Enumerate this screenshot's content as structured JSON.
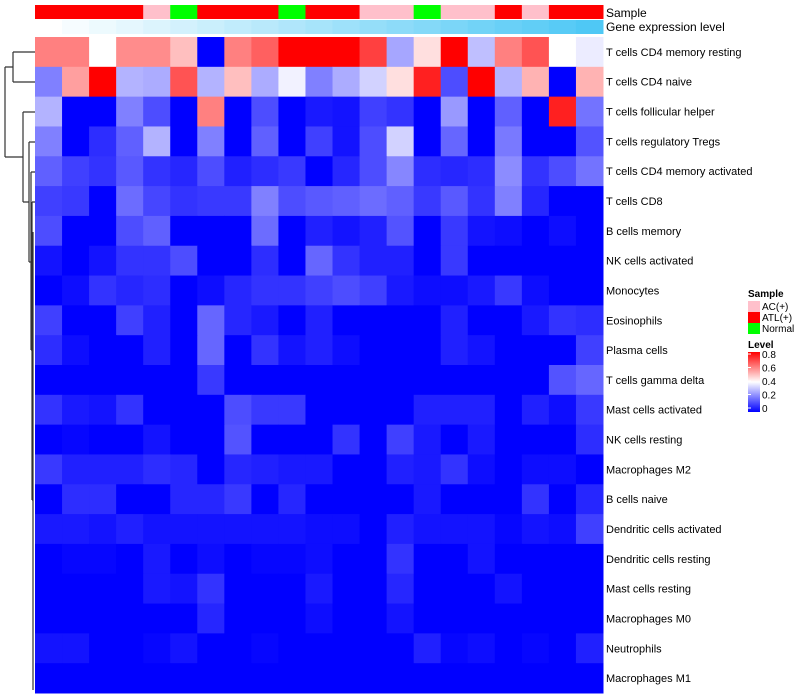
{
  "chart_data": {
    "type": "heatmap",
    "annotation_labels": {
      "sample": "Sample",
      "gene": "Gene expression level"
    },
    "columns_sample": [
      "ATL(+)",
      "ATL(+)",
      "ATL(+)",
      "ATL(+)",
      "AC(+)",
      "Normal",
      "ATL(+)",
      "ATL(+)",
      "ATL(+)",
      "Normal",
      "ATL(+)",
      "ATL(+)",
      "AC(+)",
      "AC(+)",
      "Normal",
      "AC(+)",
      "AC(+)",
      "ATL(+)",
      "AC(+)",
      "ATL(+)",
      "ATL(+)"
    ],
    "gene_expression_level": [
      0,
      0.05,
      0.1,
      0.15,
      0.2,
      0.25,
      0.3,
      0.35,
      0.4,
      0.45,
      0.5,
      0.55,
      0.6,
      0.65,
      0.7,
      0.75,
      0.8,
      0.85,
      0.9,
      0.95,
      1
    ],
    "rows": [
      "T cells CD4 memory resting",
      "T cells CD4 naive",
      "T cells follicular helper",
      "T cells regulatory  Tregs",
      "T cells CD4 memory activated",
      "T cells CD8",
      "B cells memory",
      "NK cells activated",
      "Monocytes",
      "Eosinophils",
      "Plasma cells",
      "T cells gamma delta",
      "Mast cells activated",
      "NK cells resting",
      "Macrophages M2",
      "B cells naive",
      "Dendritic cells activated",
      "Dendritic cells resting",
      "Mast cells resting",
      "Macrophages M0",
      "Neutrophils",
      "Macrophages M1"
    ],
    "values": [
      [
        0.6,
        0.6,
        0.4,
        0.58,
        0.58,
        0.5,
        0,
        0.6,
        0.65,
        0.8,
        0.8,
        0.8,
        0.7,
        0.26,
        0.45,
        0.8,
        0.3,
        0.6,
        0.67,
        0.4,
        0.37
      ],
      [
        0.2,
        0.55,
        0.8,
        0.28,
        0.27,
        0.67,
        0.28,
        0.5,
        0.27,
        0.38,
        0.2,
        0.27,
        0.33,
        0.45,
        0.75,
        0.12,
        0.8,
        0.28,
        0.52,
        0,
        0.52
      ],
      [
        0.28,
        0,
        0,
        0.2,
        0.12,
        0,
        0.6,
        0,
        0.12,
        0,
        0.04,
        0.03,
        0.1,
        0.08,
        0,
        0.24,
        0,
        0.15,
        0,
        0.75,
        0.18
      ],
      [
        0.2,
        0,
        0.07,
        0.15,
        0.28,
        0,
        0.2,
        0,
        0.15,
        0,
        0.1,
        0.03,
        0.12,
        0.33,
        0,
        0.16,
        0,
        0.19,
        0,
        0,
        0.13
      ],
      [
        0.15,
        0.1,
        0.08,
        0.14,
        0.08,
        0.06,
        0.12,
        0.05,
        0.07,
        0.09,
        0,
        0.06,
        0.12,
        0.21,
        0.07,
        0.06,
        0.07,
        0.22,
        0.08,
        0.12,
        0.18
      ],
      [
        0.1,
        0.09,
        0,
        0.17,
        0.11,
        0.08,
        0.09,
        0.09,
        0.2,
        0.12,
        0.14,
        0.15,
        0.17,
        0.15,
        0.09,
        0.14,
        0.08,
        0.2,
        0.06,
        0,
        0
      ],
      [
        0.12,
        0,
        0,
        0.12,
        0.15,
        0,
        0,
        0,
        0.17,
        0,
        0.05,
        0.03,
        0.05,
        0.13,
        0,
        0.09,
        0.03,
        0.02,
        0,
        0.02,
        0
      ],
      [
        0.03,
        0,
        0.03,
        0.08,
        0.08,
        0.12,
        0,
        0,
        0.07,
        0,
        0.16,
        0.08,
        0.05,
        0.05,
        0,
        0.09,
        0,
        0,
        0,
        0,
        0
      ],
      [
        0,
        0.02,
        0.08,
        0.06,
        0.07,
        0,
        0.02,
        0.06,
        0.08,
        0.08,
        0.1,
        0.12,
        0.1,
        0.04,
        0.02,
        0.02,
        0.04,
        0.09,
        0.02,
        0,
        0
      ],
      [
        0.1,
        0,
        0,
        0.1,
        0.05,
        0,
        0.16,
        0.06,
        0.04,
        0,
        0.05,
        0,
        0,
        0,
        0,
        0.05,
        0,
        0,
        0.04,
        0.08,
        0.07
      ],
      [
        0.07,
        0.02,
        0,
        0,
        0.05,
        0,
        0.16,
        0,
        0.08,
        0.03,
        0.05,
        0.02,
        0,
        0,
        0,
        0.05,
        0.03,
        0,
        0,
        0,
        0.1
      ],
      [
        0,
        0,
        0,
        0,
        0,
        0,
        0.09,
        0,
        0,
        0,
        0,
        0,
        0,
        0,
        0,
        0,
        0,
        0,
        0,
        0.13,
        0.16
      ],
      [
        0.08,
        0.04,
        0.03,
        0.08,
        0,
        0,
        0,
        0.12,
        0.09,
        0.09,
        0,
        0,
        0,
        0,
        0.05,
        0.05,
        0.05,
        0,
        0.05,
        0.02,
        0.09
      ],
      [
        0,
        0.01,
        0,
        0,
        0.03,
        0,
        0,
        0.13,
        0,
        0,
        0,
        0.08,
        0,
        0.1,
        0.04,
        0,
        0.04,
        0,
        0,
        0,
        0.07
      ],
      [
        0.09,
        0.05,
        0.05,
        0.05,
        0.07,
        0.06,
        0,
        0.06,
        0.05,
        0.04,
        0.04,
        0,
        0,
        0.05,
        0.04,
        0.08,
        0.02,
        0,
        0.02,
        0.02,
        0
      ],
      [
        0,
        0.07,
        0.07,
        0,
        0,
        0.06,
        0.06,
        0.09,
        0,
        0.06,
        0,
        0,
        0,
        0,
        0.04,
        0,
        0,
        0,
        0.08,
        0,
        0.06
      ],
      [
        0.04,
        0.04,
        0.03,
        0.05,
        0.03,
        0.03,
        0.03,
        0.03,
        0.03,
        0.03,
        0.02,
        0.02,
        0,
        0.05,
        0.03,
        0.03,
        0.03,
        0.01,
        0.03,
        0.02,
        0.1
      ],
      [
        0,
        0.01,
        0.01,
        0,
        0.04,
        0,
        0.02,
        0,
        0.01,
        0.01,
        0.02,
        0,
        0,
        0.08,
        0,
        0,
        0.03,
        0,
        0,
        0,
        0
      ],
      [
        0,
        0,
        0,
        0,
        0.04,
        0.03,
        0.08,
        0,
        0,
        0,
        0.04,
        0,
        0,
        0.06,
        0,
        0,
        0,
        0.03,
        0,
        0,
        0
      ],
      [
        0,
        0,
        0,
        0,
        0,
        0,
        0.06,
        0,
        0,
        0,
        0.02,
        0,
        0,
        0.03,
        0,
        0,
        0,
        0,
        0,
        0,
        0
      ],
      [
        0.03,
        0.03,
        0,
        0,
        0.01,
        0.03,
        0,
        0,
        0.01,
        0,
        0,
        0,
        0,
        0,
        0.05,
        0.01,
        0.02,
        0,
        0.01,
        0,
        0.05
      ],
      [
        0,
        0,
        0,
        0,
        0,
        0,
        0,
        0,
        0,
        0,
        0,
        0,
        0,
        0,
        0,
        0,
        0,
        0,
        0,
        0,
        0
      ]
    ],
    "color_scale": {
      "low": "#0000ff",
      "mid": "#ffffff",
      "high": "#ff0000",
      "range": [
        0,
        0.8
      ]
    },
    "gene_colors": {
      "low": "#ffffff",
      "high": "#4fc8f5"
    },
    "legend": {
      "sample_title": "Sample",
      "sample_items": [
        {
          "label": "AC(+)",
          "color": "#ffc0cb"
        },
        {
          "label": "ATL(+)",
          "color": "#ff0000"
        },
        {
          "label": "Normal",
          "color": "#00ff00"
        }
      ],
      "level_title": "Level",
      "level_ticks": [
        "0.8",
        "0.6",
        "0.4",
        "0.2",
        "0"
      ],
      "placement": "right"
    }
  }
}
